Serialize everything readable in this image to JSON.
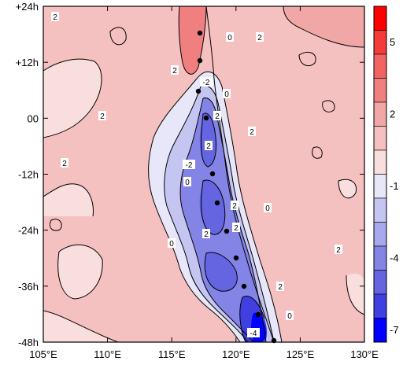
{
  "chart_data": {
    "type": "heatmap",
    "title": "",
    "xlabel": "",
    "ylabel": "",
    "x_ticks": [
      "105°E",
      "110°E",
      "115°E",
      "120°E",
      "125°E",
      "130°E"
    ],
    "y_ticks": [
      "+24h",
      "+12h",
      "00",
      "-12h",
      "-24h",
      "-36h",
      "-48h"
    ],
    "xlim": [
      105,
      130
    ],
    "ylim": [
      -48,
      24
    ],
    "colorbar": {
      "labels": [
        "5",
        "2",
        "-1",
        "-4",
        "-7"
      ],
      "levels": [
        6,
        5,
        4,
        3,
        2,
        1,
        0,
        -1,
        -2,
        -3,
        -4,
        -5,
        -6,
        -7
      ],
      "colors": [
        "#ff0000",
        "#f53a3a",
        "#f26363",
        "#f08080",
        "#f2a7a7",
        "#f5c0c0",
        "#f9dede",
        "#e7e7f9",
        "#c5c5f2",
        "#a8a8ec",
        "#8484e6",
        "#6565e2",
        "#3f3fe2",
        "#0000ff"
      ]
    },
    "contour_labels": [
      "2",
      "2",
      "2",
      "0",
      "2",
      "2",
      "-2",
      "0",
      "2",
      "2",
      "0",
      "-2",
      "2",
      "0",
      "2",
      "2",
      "0",
      "2",
      "2",
      "2",
      "0",
      "-4"
    ],
    "colors": {
      "positive": "#f5c0c0",
      "negative": "#6565e2"
    }
  }
}
